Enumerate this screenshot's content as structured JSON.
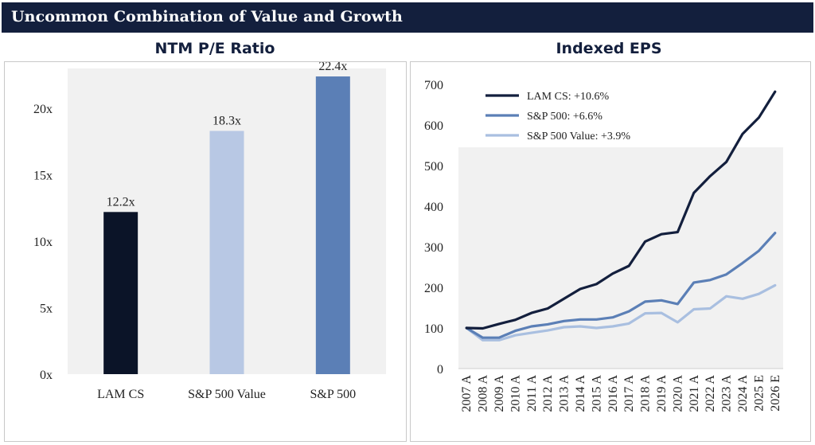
{
  "header": {
    "title": "Uncommon Combination of Value and Growth"
  },
  "colors": {
    "header_bg": "#131f3d",
    "lam": "#0b1428",
    "sp500_value": "#b8c8e4",
    "sp500": "#5b7fb6",
    "plot_bg": "#f1f1f1"
  },
  "chart_data": [
    {
      "type": "bar",
      "title": "NTM P/E Ratio",
      "categories": [
        "LAM CS",
        "S&P 500 Value",
        "S&P 500"
      ],
      "values": [
        12.2,
        18.3,
        22.4
      ],
      "value_labels": [
        "12.2x",
        "18.3x",
        "22.4x"
      ],
      "bar_colors": [
        "#0b1428",
        "#b8c8e4",
        "#5b7fb6"
      ],
      "ylim": [
        0,
        23
      ],
      "yticks": [
        0,
        5,
        10,
        15,
        20
      ],
      "ytick_labels": [
        "0x",
        "5x",
        "10x",
        "15x",
        "20x"
      ],
      "xlabel": "",
      "ylabel": ""
    },
    {
      "type": "line",
      "title": "Indexed EPS",
      "x": [
        "2007 A",
        "2008 A",
        "2009 A",
        "2010 A",
        "2011 A",
        "2012 A",
        "2013 A",
        "2014 A",
        "2015 A",
        "2016 A",
        "2017 A",
        "2018 A",
        "2019 A",
        "2020 A",
        "2021 A",
        "2022 A",
        "2023 A",
        "2024 A",
        "2025 E",
        "2026 E"
      ],
      "series": [
        {
          "name": "LAM CS: +10.6%",
          "color": "#131f3d",
          "values": [
            100,
            99,
            110,
            120,
            137,
            148,
            172,
            196,
            208,
            234,
            253,
            313,
            331,
            336,
            433,
            474,
            509,
            578,
            618,
            682
          ]
        },
        {
          "name": "S&P 500: +6.6%",
          "color": "#5b7fb6",
          "values": [
            100,
            76,
            76,
            93,
            104,
            109,
            117,
            121,
            121,
            126,
            141,
            165,
            168,
            159,
            212,
            218,
            232,
            260,
            290,
            334
          ]
        },
        {
          "name": "S&P 500 Value: +3.9%",
          "color": "#a9bfe0",
          "values": [
            100,
            70,
            70,
            82,
            88,
            94,
            102,
            104,
            100,
            104,
            111,
            136,
            137,
            114,
            146,
            148,
            178,
            172,
            184,
            205
          ]
        }
      ],
      "ylim": [
        0,
        700
      ],
      "yticks": [
        0,
        100,
        200,
        300,
        400,
        500,
        600,
        700
      ],
      "ytick_labels": [
        "0",
        "100",
        "200",
        "300",
        "400",
        "500",
        "600",
        "700"
      ],
      "legend": "top-left",
      "xlabel": "",
      "ylabel": ""
    }
  ]
}
